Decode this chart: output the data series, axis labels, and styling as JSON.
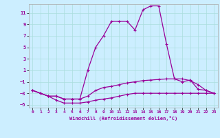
{
  "xlabel": "Windchill (Refroidissement éolien,°C)",
  "background_color": "#cceeff",
  "grid_color": "#aadddd",
  "line_color": "#990099",
  "xlim": [
    -0.5,
    23.5
  ],
  "ylim": [
    -5.5,
    12.5
  ],
  "yticks": [
    -5,
    -3,
    -1,
    1,
    3,
    5,
    7,
    9,
    11
  ],
  "xticks": [
    0,
    1,
    2,
    3,
    4,
    5,
    6,
    7,
    8,
    9,
    10,
    11,
    12,
    13,
    14,
    15,
    16,
    17,
    18,
    19,
    20,
    21,
    22,
    23
  ],
  "line1_x": [
    0,
    1,
    2,
    3,
    4,
    5,
    6,
    7,
    8,
    9,
    10,
    11,
    12,
    13,
    14,
    15,
    16,
    17,
    18,
    19,
    20,
    21,
    22,
    23
  ],
  "line1_y": [
    -2.5,
    -3.0,
    -3.5,
    -4.2,
    -4.7,
    -4.7,
    -4.7,
    -4.5,
    -4.2,
    -4.0,
    -3.8,
    -3.5,
    -3.2,
    -3.0,
    -3.0,
    -3.0,
    -3.0,
    -3.0,
    -3.0,
    -3.0,
    -3.0,
    -3.0,
    -3.0,
    -3.0
  ],
  "line2_x": [
    0,
    1,
    2,
    3,
    4,
    5,
    6,
    7,
    8,
    9,
    10,
    11,
    12,
    13,
    14,
    15,
    16,
    17,
    18,
    19,
    20,
    21,
    22,
    23
  ],
  "line2_y": [
    -2.5,
    -3.0,
    -3.5,
    -3.5,
    -4.0,
    -4.0,
    -4.0,
    1.0,
    5.0,
    7.0,
    9.5,
    9.5,
    9.5,
    8.0,
    11.5,
    12.2,
    12.2,
    5.5,
    -0.5,
    -1.0,
    -0.7,
    -2.3,
    -2.5,
    -3.0
  ],
  "line3_x": [
    0,
    1,
    2,
    3,
    4,
    5,
    6,
    7,
    8,
    9,
    10,
    11,
    12,
    13,
    14,
    15,
    16,
    17,
    18,
    19,
    20,
    21,
    22,
    23
  ],
  "line3_y": [
    -2.5,
    -3.0,
    -3.5,
    -3.5,
    -4.0,
    -4.0,
    -4.0,
    -3.5,
    -2.5,
    -2.0,
    -1.8,
    -1.5,
    -1.2,
    -1.0,
    -0.8,
    -0.7,
    -0.6,
    -0.5,
    -0.5,
    -0.5,
    -0.8,
    -1.5,
    -2.5,
    -3.0
  ]
}
